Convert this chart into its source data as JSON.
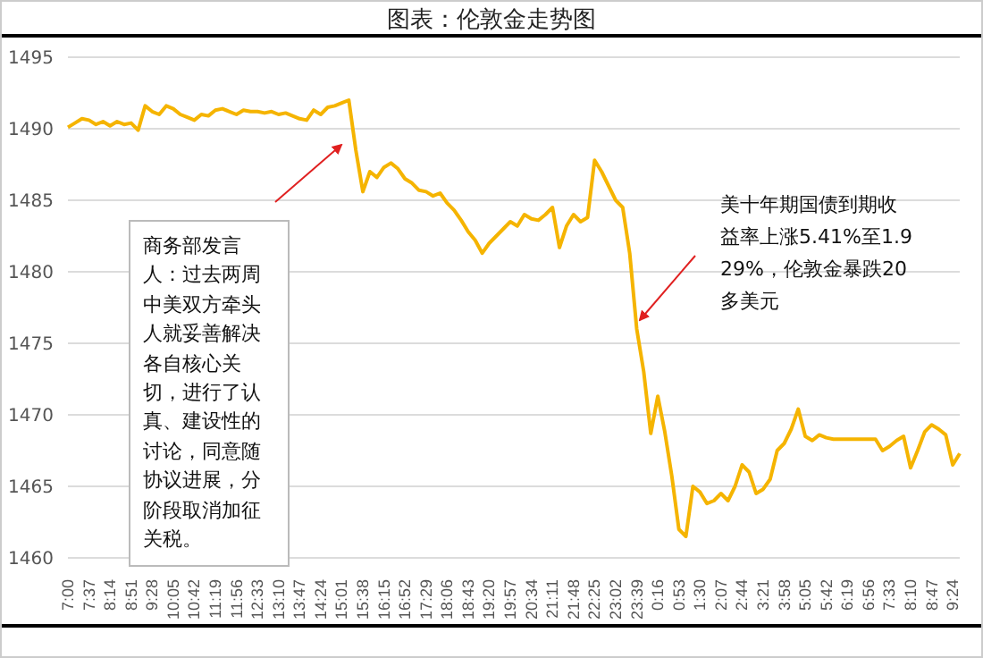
{
  "chart_data": {
    "type": "line",
    "title": "图表：伦敦金走势图",
    "categories": [
      "7:00",
      null,
      null,
      "7:37",
      null,
      null,
      "8:14",
      null,
      null,
      "8:51",
      null,
      null,
      "9:28",
      null,
      null,
      "10:05",
      null,
      null,
      "10:42",
      null,
      null,
      "11:19",
      null,
      null,
      "11:56",
      null,
      null,
      "12:33",
      null,
      null,
      "13:10",
      null,
      null,
      "13:47",
      null,
      null,
      "14:24",
      null,
      null,
      "15:01",
      null,
      null,
      "15:38",
      null,
      null,
      "16:15",
      null,
      null,
      "16:52",
      null,
      null,
      "17:29",
      null,
      null,
      "18:06",
      null,
      null,
      "18:43",
      null,
      null,
      "19:20",
      null,
      null,
      "19:57",
      null,
      null,
      "20:34",
      null,
      null,
      "21:11",
      null,
      null,
      "21:48",
      null,
      null,
      "22:25",
      null,
      null,
      "23:02",
      null,
      null,
      "23:39",
      null,
      null,
      "0:16",
      null,
      null,
      "0:53",
      null,
      null,
      "1:30",
      null,
      null,
      "2:07",
      null,
      null,
      "2:44",
      null,
      null,
      "3:21",
      null,
      null,
      "3:58",
      null,
      null,
      "5:05",
      null,
      null,
      "5:42",
      null,
      null,
      "6:19",
      null,
      null,
      "6:56",
      null,
      null,
      "7:33",
      null,
      null,
      "8:10",
      null,
      null,
      "8:47",
      null,
      null,
      "9:24",
      null
    ],
    "series": [
      {
        "color": "#f5b400",
        "values": [
          1490.1,
          1490.4,
          1490.7,
          1490.6,
          1490.3,
          1490.5,
          1490.2,
          1490.5,
          1490.3,
          1490.4,
          1489.9,
          1491.6,
          1491.2,
          1491.0,
          1491.6,
          1491.4,
          1491.0,
          1490.8,
          1490.6,
          1491.0,
          1490.9,
          1491.3,
          1491.4,
          1491.2,
          1491.0,
          1491.3,
          1491.2,
          1491.2,
          1491.1,
          1491.2,
          1491.0,
          1491.1,
          1490.9,
          1490.7,
          1490.6,
          1491.3,
          1491.0,
          1491.5,
          1491.6,
          1491.8,
          1492.0,
          1488.5,
          1485.6,
          1487.0,
          1486.6,
          1487.3,
          1487.6,
          1487.2,
          1486.5,
          1486.2,
          1485.7,
          1485.6,
          1485.3,
          1485.5,
          1484.8,
          1484.3,
          1483.6,
          1482.8,
          1482.2,
          1481.3,
          1482.0,
          1482.5,
          1483.0,
          1483.5,
          1483.2,
          1484.0,
          1483.7,
          1483.6,
          1484.0,
          1484.5,
          1481.7,
          1483.2,
          1484.0,
          1483.5,
          1483.8,
          1487.8,
          1487.0,
          1486.0,
          1485.0,
          1484.5,
          1481.3,
          1476.0,
          1473.0,
          1468.7,
          1471.3,
          1468.8,
          1465.7,
          1462.0,
          1461.5,
          1465.0,
          1464.6,
          1463.8,
          1464.0,
          1464.5,
          1464.0,
          1465.0,
          1466.5,
          1466.0,
          1464.5,
          1464.8,
          1465.5,
          1467.5,
          1468.0,
          1469.0,
          1470.4,
          1468.5,
          1468.2,
          1468.6,
          1468.4,
          1468.3,
          1468.3,
          1468.3,
          1468.3,
          1468.3,
          1468.3,
          1468.3,
          1467.5,
          1467.8,
          1468.2,
          1468.5,
          1466.3,
          1467.5,
          1468.8,
          1469.3,
          1469.0,
          1468.6,
          1466.5,
          1467.3
        ]
      }
    ],
    "ylim": [
      1460,
      1495
    ],
    "yticks": [
      1460,
      1465,
      1470,
      1475,
      1480,
      1485,
      1490,
      1495
    ],
    "grid": "y",
    "legend": false,
    "marker": "none",
    "line_style": "solid",
    "annotations": [
      "商务部发言人：过去两周中美双方牵头人就妥善解决各自核心关切，进行了认真、建设性的讨论，同意随协议进展，分阶段取消加征关税。",
      "美十年期国债到期收益率上涨5.41%至1.929%，伦敦金暴跌20多美元"
    ]
  }
}
